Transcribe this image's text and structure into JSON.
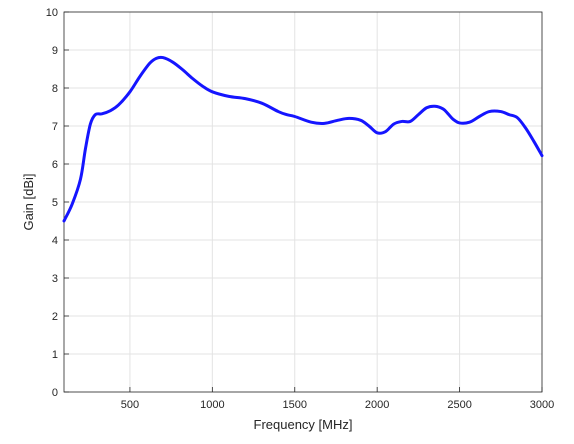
{
  "chart_data": {
    "type": "line",
    "title": "",
    "xlabel": "Frequency [MHz]",
    "ylabel": "Gain [dBi]",
    "xlim": [
      100,
      3000
    ],
    "ylim": [
      0,
      10
    ],
    "xticks": [
      500,
      1000,
      1500,
      2000,
      2500,
      3000
    ],
    "yticks": [
      0,
      1,
      2,
      3,
      4,
      5,
      6,
      7,
      8,
      9,
      10
    ],
    "grid": true,
    "legend": "none",
    "series": [
      {
        "color": "#1515ff",
        "x": [
          100,
          150,
          200,
          230,
          260,
          290,
          330,
          380,
          430,
          500,
          560,
          620,
          660,
          700,
          760,
          820,
          880,
          940,
          1000,
          1100,
          1200,
          1300,
          1400,
          1450,
          1500,
          1600,
          1680,
          1760,
          1830,
          1900,
          1950,
          2000,
          2050,
          2100,
          2150,
          2200,
          2250,
          2300,
          2350,
          2400,
          2430,
          2460,
          2500,
          2560,
          2620,
          2680,
          2750,
          2800,
          2850,
          2900,
          2950,
          3000
        ],
        "y": [
          4.5,
          4.95,
          5.6,
          6.4,
          7.05,
          7.3,
          7.32,
          7.4,
          7.55,
          7.9,
          8.3,
          8.65,
          8.78,
          8.8,
          8.68,
          8.48,
          8.25,
          8.05,
          7.9,
          7.78,
          7.72,
          7.6,
          7.38,
          7.3,
          7.25,
          7.1,
          7.07,
          7.15,
          7.2,
          7.15,
          7.0,
          6.82,
          6.85,
          7.05,
          7.12,
          7.12,
          7.3,
          7.48,
          7.52,
          7.45,
          7.32,
          7.18,
          7.08,
          7.1,
          7.25,
          7.38,
          7.38,
          7.3,
          7.22,
          6.95,
          6.6,
          6.22
        ]
      }
    ]
  }
}
